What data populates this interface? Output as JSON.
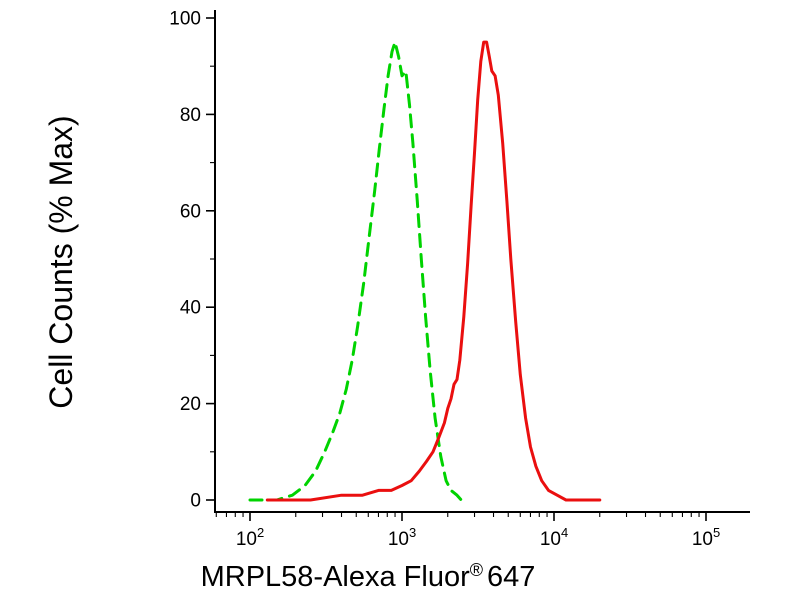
{
  "chart_data": {
    "type": "line",
    "title": "",
    "xlabel_main": "MRPL58-Alexa Fluor",
    "xlabel_sup": "®",
    "xlabel_suffix": "647",
    "xlabel_full": "MRPL58-Alexa Fluor® 647",
    "ylabel": "Cell Counts (% Max)",
    "x_scale": "log10",
    "xlim_log10": [
      1.77,
      5.29
    ],
    "ylim": [
      0,
      100
    ],
    "grid": false,
    "legend": "none",
    "x_axis": {
      "major_ticks": [
        {
          "base": "10",
          "exp": "2",
          "value": 100
        },
        {
          "base": "10",
          "exp": "3",
          "value": 1000
        },
        {
          "base": "10",
          "exp": "4",
          "value": 10000
        },
        {
          "base": "10",
          "exp": "5",
          "value": 100000
        }
      ]
    },
    "y_axis": {
      "major_ticks": [
        0,
        20,
        40,
        60,
        80,
        100
      ],
      "minor_ticks": [
        10,
        30,
        50,
        70,
        90
      ]
    },
    "series": [
      {
        "name": "green-dashed-curve",
        "color": "#00d300",
        "style": "dashed",
        "peak_x": 900,
        "peak_y": 95,
        "points": [
          [
            100,
            0
          ],
          [
            150,
            0
          ],
          [
            190,
            1
          ],
          [
            230,
            3
          ],
          [
            270,
            6
          ],
          [
            310,
            10
          ],
          [
            350,
            14
          ],
          [
            390,
            18
          ],
          [
            430,
            23
          ],
          [
            470,
            29
          ],
          [
            510,
            36
          ],
          [
            560,
            45
          ],
          [
            610,
            55
          ],
          [
            660,
            64
          ],
          [
            710,
            73
          ],
          [
            760,
            81
          ],
          [
            810,
            88
          ],
          [
            860,
            93
          ],
          [
            900,
            95
          ],
          [
            950,
            92
          ],
          [
            1000,
            88
          ],
          [
            1060,
            89
          ],
          [
            1120,
            82
          ],
          [
            1180,
            74
          ],
          [
            1260,
            62
          ],
          [
            1340,
            50
          ],
          [
            1430,
            38
          ],
          [
            1530,
            27
          ],
          [
            1650,
            17
          ],
          [
            1800,
            9
          ],
          [
            1950,
            4
          ],
          [
            2100,
            2
          ],
          [
            2300,
            1
          ],
          [
            2450,
            0
          ]
        ]
      },
      {
        "name": "red-solid-curve",
        "color": "#ea0f0f",
        "style": "solid",
        "peak_x": 3450,
        "peak_y": 95,
        "points": [
          [
            130,
            0
          ],
          [
            250,
            0
          ],
          [
            400,
            1
          ],
          [
            550,
            1
          ],
          [
            700,
            2
          ],
          [
            850,
            2
          ],
          [
            1000,
            3
          ],
          [
            1150,
            4
          ],
          [
            1300,
            6
          ],
          [
            1450,
            8
          ],
          [
            1600,
            10
          ],
          [
            1750,
            13
          ],
          [
            1900,
            16
          ],
          [
            2000,
            19
          ],
          [
            2100,
            21
          ],
          [
            2200,
            24
          ],
          [
            2300,
            25
          ],
          [
            2400,
            29
          ],
          [
            2550,
            38
          ],
          [
            2700,
            49
          ],
          [
            2850,
            61
          ],
          [
            3000,
            72
          ],
          [
            3150,
            83
          ],
          [
            3300,
            91
          ],
          [
            3450,
            95
          ],
          [
            3600,
            95
          ],
          [
            3750,
            92
          ],
          [
            3900,
            89
          ],
          [
            4100,
            88
          ],
          [
            4300,
            84
          ],
          [
            4600,
            74
          ],
          [
            4900,
            62
          ],
          [
            5200,
            50
          ],
          [
            5600,
            37
          ],
          [
            6000,
            26
          ],
          [
            6500,
            17
          ],
          [
            7000,
            11
          ],
          [
            7600,
            7
          ],
          [
            8300,
            4
          ],
          [
            9200,
            2
          ],
          [
            10500,
            1
          ],
          [
            12000,
            0
          ],
          [
            20000,
            0
          ]
        ]
      }
    ]
  }
}
